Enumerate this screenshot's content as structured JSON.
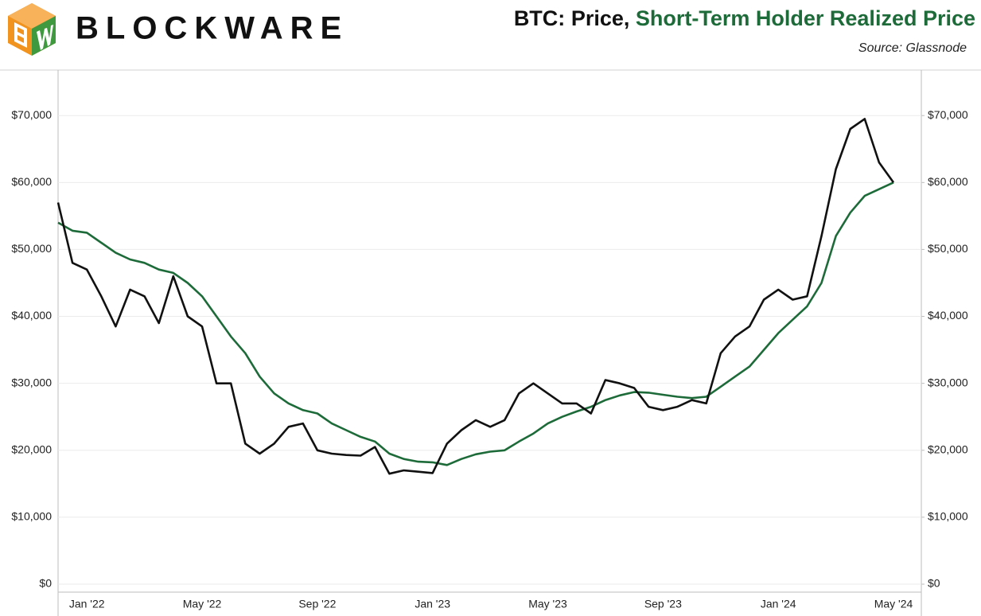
{
  "brand": "BLOCKWARE",
  "chart_data": {
    "type": "line",
    "title": "BTC:",
    "source": "Source: Glassnode",
    "categories": [
      null,
      null,
      "Jan '22",
      null,
      null,
      null,
      null,
      null,
      null,
      null,
      "May '22",
      null,
      null,
      null,
      null,
      null,
      null,
      null,
      "Sep '22",
      null,
      null,
      null,
      null,
      null,
      null,
      null,
      "Jan '23",
      null,
      null,
      null,
      null,
      null,
      null,
      null,
      "May '23",
      null,
      null,
      null,
      null,
      null,
      null,
      null,
      "Sep '23",
      null,
      null,
      null,
      null,
      null,
      null,
      null,
      "Jan '24",
      null,
      null,
      null,
      null,
      null,
      null,
      null,
      "May '24"
    ],
    "series": [
      {
        "name": "Price,",
        "color": "#111111",
        "values": [
          57000,
          48000,
          47000,
          43000,
          38500,
          44000,
          43000,
          39000,
          46000,
          40000,
          38500,
          30000,
          30000,
          21000,
          19500,
          21000,
          23500,
          24000,
          20000,
          19500,
          19300,
          19200,
          20500,
          16500,
          17000,
          16800,
          16600,
          21000,
          23000,
          24500,
          23500,
          24500,
          28500,
          30000,
          28500,
          27000,
          27000,
          25500,
          30500,
          30000,
          29300,
          26500,
          26000,
          26500,
          27500,
          27000,
          34500,
          37000,
          38500,
          42500,
          44000,
          42500,
          43000,
          52000,
          62000,
          68000,
          69500,
          63000,
          60000
        ]
      },
      {
        "name": "Short-Term Holder Realized Price",
        "color": "#1e6b3a",
        "values": [
          54000,
          52800,
          52500,
          51000,
          49500,
          48500,
          48000,
          47000,
          46500,
          45000,
          43000,
          40000,
          37000,
          34500,
          31000,
          28500,
          27000,
          26000,
          25500,
          24000,
          23000,
          22000,
          21300,
          19500,
          18700,
          18300,
          18200,
          17800,
          18700,
          19400,
          19800,
          20000,
          21300,
          22500,
          24000,
          25000,
          25800,
          26500,
          27500,
          28200,
          28700,
          28600,
          28300,
          28000,
          27800,
          28000,
          29500,
          31000,
          32500,
          35000,
          37500,
          39500,
          41500,
          45000,
          52000,
          55500,
          58000,
          59000,
          60000
        ]
      }
    ],
    "ylim": [
      0,
      76800
    ],
    "yticks": [
      {
        "value": 0,
        "label": "$0"
      },
      {
        "value": 10000,
        "label": "$10,000"
      },
      {
        "value": 20000,
        "label": "$20,000"
      },
      {
        "value": 30000,
        "label": "$30,000"
      },
      {
        "value": 40000,
        "label": "$40,000"
      },
      {
        "value": 50000,
        "label": "$50,000"
      },
      {
        "value": 60000,
        "label": "$60,000"
      },
      {
        "value": 70000,
        "label": "$70,000"
      }
    ],
    "y2lim": [
      0,
      76800
    ],
    "y2ticks": [
      {
        "value": 0,
        "label": "$0"
      },
      {
        "value": 10000,
        "label": "$10,000"
      },
      {
        "value": 20000,
        "label": "$20,000"
      },
      {
        "value": 30000,
        "label": "$30,000"
      },
      {
        "value": 40000,
        "label": "$40,000"
      },
      {
        "value": 50000,
        "label": "$50,000"
      },
      {
        "value": 60000,
        "label": "$60,000"
      },
      {
        "value": 70000,
        "label": "$70,000"
      }
    ],
    "grid": true
  }
}
